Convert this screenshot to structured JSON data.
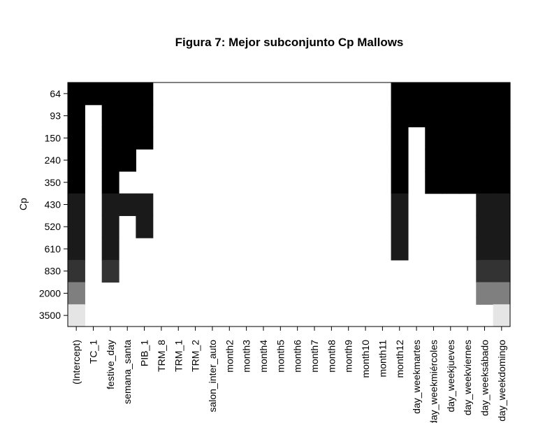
{
  "chart_data": {
    "type": "heatmap",
    "title": "Figura 7: Mejor subconjunto Cp Mallows",
    "ylabel": "Cp",
    "xlabel": "",
    "y_categories": [
      "64",
      "93",
      "150",
      "240",
      "350",
      "430",
      "520",
      "610",
      "830",
      "2000",
      "3500"
    ],
    "x_categories": [
      "(Intercept)",
      "TC_1",
      "festive_day",
      "semana_santa",
      "PIB_1",
      "TRM_8",
      "TRM_1",
      "TRM_2",
      "salon_inter_auto",
      "month2",
      "month3",
      "month4",
      "month5",
      "month6",
      "month7",
      "month8",
      "month9",
      "month10",
      "month11",
      "month12",
      "day_weekmartes",
      "day_weekmiércoles",
      "day_weekjueves",
      "day_weekviernes",
      "day_weeksábado",
      "day_weekdomingo"
    ],
    "fill_colors": [
      "#ffffff",
      "#000000",
      "#1a1a1a",
      "#333333",
      "#7f7f7f",
      "#e5e5e5"
    ],
    "cells": [
      [
        1,
        1,
        1,
        1,
        1,
        0,
        0,
        0,
        0,
        0,
        0,
        0,
        0,
        0,
        0,
        0,
        0,
        0,
        0,
        1,
        1,
        1,
        1,
        1,
        1,
        1
      ],
      [
        1,
        0,
        1,
        1,
        1,
        0,
        0,
        0,
        0,
        0,
        0,
        0,
        0,
        0,
        0,
        0,
        0,
        0,
        0,
        1,
        1,
        1,
        1,
        1,
        1,
        1
      ],
      [
        1,
        0,
        1,
        1,
        1,
        0,
        0,
        0,
        0,
        0,
        0,
        0,
        0,
        0,
        0,
        0,
        0,
        0,
        0,
        1,
        0,
        1,
        1,
        1,
        1,
        1
      ],
      [
        1,
        0,
        1,
        1,
        0,
        0,
        0,
        0,
        0,
        0,
        0,
        0,
        0,
        0,
        0,
        0,
        0,
        0,
        0,
        1,
        0,
        1,
        1,
        1,
        1,
        1
      ],
      [
        1,
        0,
        1,
        0,
        0,
        0,
        0,
        0,
        0,
        0,
        0,
        0,
        0,
        0,
        0,
        0,
        0,
        0,
        0,
        1,
        0,
        1,
        1,
        1,
        1,
        1
      ],
      [
        2,
        0,
        2,
        2,
        2,
        0,
        0,
        0,
        0,
        0,
        0,
        0,
        0,
        0,
        0,
        0,
        0,
        0,
        0,
        2,
        0,
        0,
        0,
        0,
        2,
        2
      ],
      [
        2,
        0,
        2,
        0,
        2,
        0,
        0,
        0,
        0,
        0,
        0,
        0,
        0,
        0,
        0,
        0,
        0,
        0,
        0,
        2,
        0,
        0,
        0,
        0,
        2,
        2
      ],
      [
        2,
        0,
        2,
        0,
        0,
        0,
        0,
        0,
        0,
        0,
        0,
        0,
        0,
        0,
        0,
        0,
        0,
        0,
        0,
        2,
        0,
        0,
        0,
        0,
        2,
        2
      ],
      [
        3,
        0,
        3,
        0,
        0,
        0,
        0,
        0,
        0,
        0,
        0,
        0,
        0,
        0,
        0,
        0,
        0,
        0,
        0,
        0,
        0,
        0,
        0,
        0,
        3,
        3
      ],
      [
        4,
        0,
        0,
        0,
        0,
        0,
        0,
        0,
        0,
        0,
        0,
        0,
        0,
        0,
        0,
        0,
        0,
        0,
        0,
        0,
        0,
        0,
        0,
        0,
        4,
        4
      ],
      [
        5,
        0,
        0,
        0,
        0,
        0,
        0,
        0,
        0,
        0,
        0,
        0,
        0,
        0,
        0,
        0,
        0,
        0,
        0,
        0,
        0,
        0,
        0,
        0,
        0,
        5
      ]
    ],
    "grid": false,
    "legend": "none"
  }
}
